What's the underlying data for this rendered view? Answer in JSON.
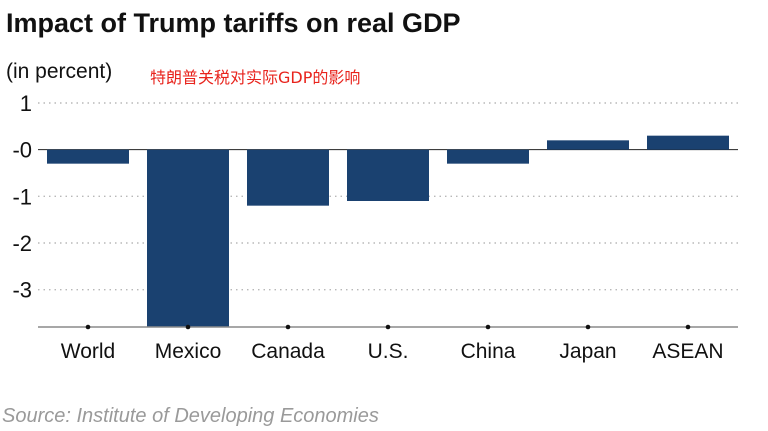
{
  "chart_data": {
    "type": "bar",
    "title": "Impact of Trump tariffs on real GDP",
    "subtitle": "(in percent)",
    "annotation": "特朗普关税对实际GDP的影响",
    "source": "Source: Institute of Developing Economies",
    "categories": [
      "World",
      "Mexico",
      "Canada",
      "U.S.",
      "China",
      "Japan",
      "ASEAN"
    ],
    "values": [
      -0.3,
      -3.8,
      -1.2,
      -1.1,
      -0.3,
      0.2,
      0.3
    ],
    "y_ticks": [
      1,
      0,
      -1,
      -2,
      -3
    ],
    "y_tick_labels": [
      "1",
      "-0",
      "-1",
      "-2",
      "-3"
    ],
    "ylim": [
      -3.8,
      1.0
    ],
    "xlabel": "",
    "ylabel": "",
    "grid": "horizontal dotted",
    "bar_color": "#1a4170",
    "annotation_color": "#e8231c",
    "source_color": "#9a9a9a"
  }
}
